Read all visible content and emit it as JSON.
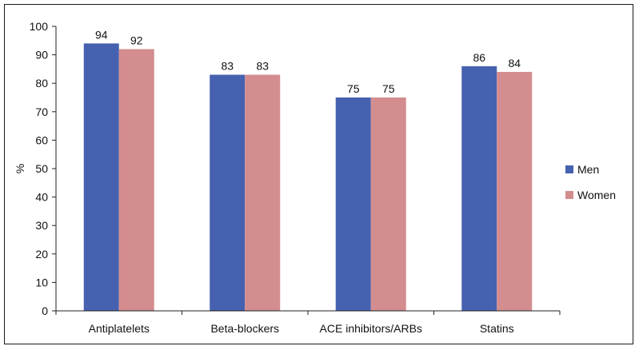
{
  "chart_data": {
    "type": "bar",
    "categories": [
      "Antiplatelets",
      "Beta-blockers",
      "ACE inhibitors/ARBs",
      "Statins"
    ],
    "series": [
      {
        "name": "Men",
        "values": [
          94,
          83,
          75,
          86
        ],
        "color": "#4661B0"
      },
      {
        "name": "Women",
        "values": [
          92,
          83,
          75,
          84
        ],
        "color": "#D48D8F"
      }
    ],
    "ylabel": "%",
    "xlabel": "",
    "ylim": [
      0,
      100
    ],
    "yticks": [
      0,
      10,
      20,
      30,
      40,
      50,
      60,
      70,
      80,
      90,
      100
    ],
    "grid": false,
    "legend_position": "right",
    "data_labels": true
  }
}
